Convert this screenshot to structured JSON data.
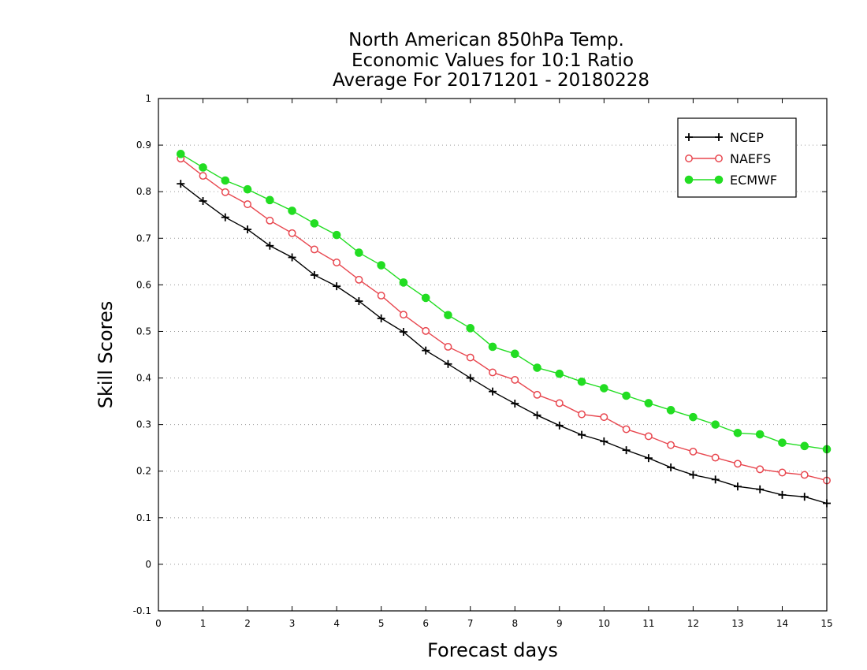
{
  "chart_data": {
    "type": "line",
    "title": [
      "North American 850hPa Temp.",
      "Economic Values for 10:1 Ratio",
      "Average For 20171201 - 20180228"
    ],
    "xlabel": "Forecast days",
    "ylabel": "Skill Scores",
    "xlim": [
      0,
      15
    ],
    "ylim": [
      -0.1,
      1
    ],
    "xticks": [
      0,
      1,
      2,
      3,
      4,
      5,
      6,
      7,
      8,
      9,
      10,
      11,
      12,
      13,
      14,
      15
    ],
    "xtick_labels": [
      "0",
      "1",
      "2",
      "3",
      "4",
      "5",
      "6",
      "7",
      "8",
      "9",
      "10",
      "11",
      "12",
      "13",
      "14",
      "15"
    ],
    "yticks": [
      -0.1,
      0,
      0.1,
      0.2,
      0.3,
      0.4,
      0.5,
      0.6,
      0.7,
      0.8,
      0.9,
      1
    ],
    "ytick_labels": [
      "-0.1",
      "0",
      "0.1",
      "0.2",
      "0.3",
      "0.4",
      "0.5",
      "0.6",
      "0.7",
      "0.8",
      "0.9",
      "1"
    ],
    "grid": "horizontal dotted",
    "legend_position": "top-right",
    "x": [
      0.5,
      1,
      1.5,
      2,
      2.5,
      3,
      3.5,
      4,
      4.5,
      5,
      5.5,
      6,
      6.5,
      7,
      7.5,
      8,
      8.5,
      9,
      9.5,
      10,
      10.5,
      11,
      11.5,
      12,
      12.5,
      13,
      13.5,
      14,
      14.5,
      15
    ],
    "series": [
      {
        "name": "NCEP",
        "color": "#000000",
        "marker": "plus",
        "values": [
          0.817,
          0.78,
          0.745,
          0.719,
          0.684,
          0.659,
          0.621,
          0.597,
          0.565,
          0.528,
          0.499,
          0.459,
          0.43,
          0.4,
          0.371,
          0.345,
          0.32,
          0.298,
          0.278,
          0.264,
          0.245,
          0.228,
          0.208,
          0.192,
          0.182,
          0.167,
          0.161,
          0.149,
          0.145,
          0.131
        ]
      },
      {
        "name": "NAEFS",
        "color": "#e8474f",
        "marker": "open-circle",
        "values": [
          0.871,
          0.834,
          0.799,
          0.773,
          0.738,
          0.711,
          0.676,
          0.648,
          0.611,
          0.577,
          0.536,
          0.501,
          0.467,
          0.444,
          0.412,
          0.396,
          0.364,
          0.346,
          0.322,
          0.316,
          0.29,
          0.275,
          0.256,
          0.242,
          0.229,
          0.216,
          0.204,
          0.197,
          0.192,
          0.18
        ]
      },
      {
        "name": "ECMWF",
        "color": "#22dd22",
        "marker": "filled-circle",
        "values": [
          0.881,
          0.852,
          0.824,
          0.805,
          0.782,
          0.759,
          0.732,
          0.707,
          0.669,
          0.642,
          0.605,
          0.572,
          0.535,
          0.507,
          0.467,
          0.452,
          0.422,
          0.409,
          0.392,
          0.378,
          0.362,
          0.346,
          0.331,
          0.316,
          0.3,
          0.282,
          0.279,
          0.261,
          0.254,
          0.247
        ]
      }
    ]
  }
}
